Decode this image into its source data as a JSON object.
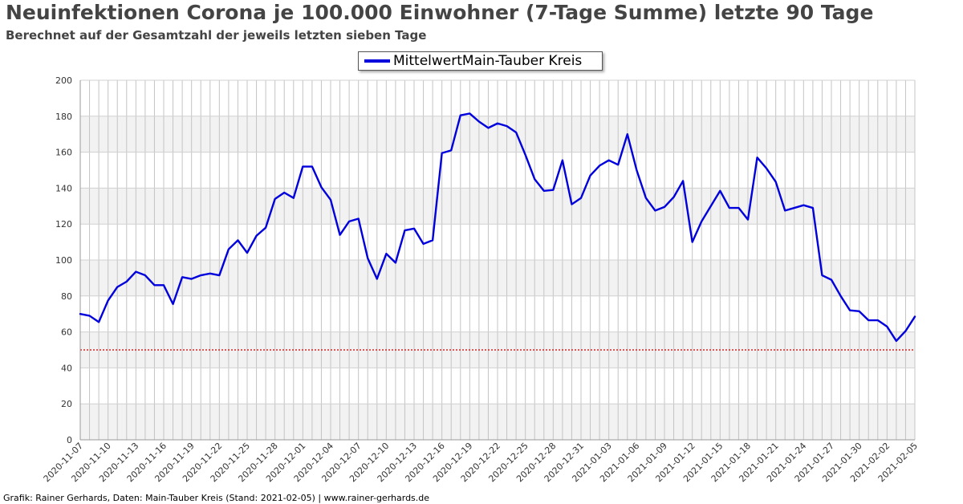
{
  "chart_data": {
    "type": "line",
    "title": "Neuinfektionen Corona je 100.000 Einwohner (7-Tage Summe) letzte 90 Tage",
    "subtitle": "Berechnet auf der Gesamtzahl der jeweils letzten sieben Tage",
    "legend": "top-center",
    "grid": true,
    "ylim": [
      0,
      200
    ],
    "yticks": [
      0,
      20,
      40,
      60,
      80,
      100,
      120,
      140,
      160,
      180,
      200
    ],
    "x_start": "2020-11-07",
    "x_end": "2021-02-05",
    "xticks": [
      "2020-11-07",
      "2020-11-10",
      "2020-11-13",
      "2020-11-16",
      "2020-11-19",
      "2020-11-22",
      "2020-11-25",
      "2020-11-28",
      "2020-12-01",
      "2020-12-04",
      "2020-12-07",
      "2020-12-10",
      "2020-12-13",
      "2020-12-16",
      "2020-12-19",
      "2020-12-22",
      "2020-12-25",
      "2020-12-28",
      "2020-12-31",
      "2021-01-03",
      "2021-01-06",
      "2021-01-09",
      "2021-01-12",
      "2021-01-15",
      "2021-01-18",
      "2021-01-21",
      "2021-01-24",
      "2021-01-27",
      "2021-01-30",
      "2021-02-02",
      "2021-02-05"
    ],
    "series": [
      {
        "name": "MittelwertMain-Tauber Kreis",
        "color": "#0000dd",
        "values": [
          70,
          69,
          65.5,
          77.5,
          85,
          88,
          93.5,
          91.5,
          86,
          86,
          75.5,
          90.5,
          89.5,
          91.5,
          92.5,
          91.5,
          106,
          111,
          104,
          113.5,
          118,
          134,
          137.5,
          134.5,
          152,
          152,
          140.5,
          133.5,
          114,
          121.5,
          123,
          101,
          89.5,
          103.5,
          98.5,
          116.5,
          117.5,
          109,
          111,
          159.5,
          161,
          180.5,
          181.5,
          177,
          173.5,
          176,
          174.5,
          171,
          158.5,
          145,
          138.5,
          139,
          155.5,
          131,
          134.5,
          147,
          152.5,
          155.5,
          153,
          170,
          150,
          134.5,
          127.5,
          129.5,
          135,
          144,
          110,
          121.5,
          130,
          138.5,
          129,
          129,
          122.5,
          157,
          151,
          143.5,
          127.5,
          129,
          130.5,
          129,
          91.5,
          89,
          80,
          72,
          71.5,
          66.5,
          66.5,
          63,
          55,
          60.5,
          68.5
        ]
      }
    ],
    "reference_line": {
      "value": 50,
      "color": "#cc0000"
    }
  },
  "footer": "Grafik: Rainer Gerhards, Daten: Main-Tauber Kreis (Stand: 2021-02-05) | www.rainer-gerhards.de"
}
